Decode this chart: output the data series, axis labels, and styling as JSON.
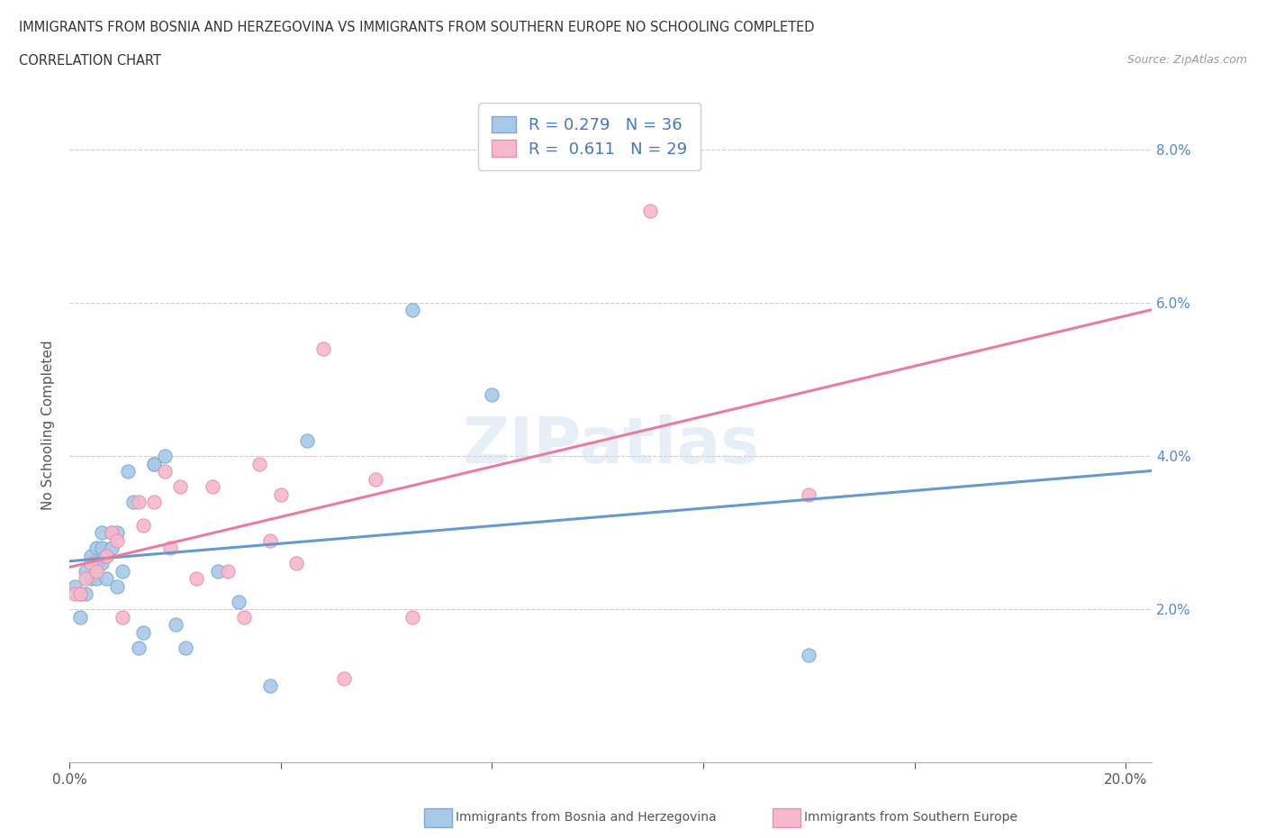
{
  "title_line1": "IMMIGRANTS FROM BOSNIA AND HERZEGOVINA VS IMMIGRANTS FROM SOUTHERN EUROPE NO SCHOOLING COMPLETED",
  "title_line2": "CORRELATION CHART",
  "source_text": "Source: ZipAtlas.com",
  "ylabel": "No Schooling Completed",
  "xlim": [
    0.0,
    0.205
  ],
  "ylim": [
    0.0,
    0.088
  ],
  "xticks": [
    0.0,
    0.04,
    0.08,
    0.12,
    0.16,
    0.2
  ],
  "yticks": [
    0.0,
    0.02,
    0.04,
    0.06,
    0.08
  ],
  "blue_R": 0.279,
  "blue_N": 36,
  "pink_R": 0.611,
  "pink_N": 29,
  "blue_color": "#a8c8e8",
  "pink_color": "#f5b8cc",
  "blue_edge_color": "#7aaad0",
  "pink_edge_color": "#e890aa",
  "blue_line_color": "#6699cc",
  "pink_line_color": "#e87ca0",
  "legend_text_color": "#4477bb",
  "blue_scatter_x": [
    0.001,
    0.002,
    0.002,
    0.003,
    0.003,
    0.004,
    0.004,
    0.005,
    0.005,
    0.005,
    0.006,
    0.006,
    0.006,
    0.007,
    0.007,
    0.008,
    0.008,
    0.009,
    0.009,
    0.01,
    0.011,
    0.012,
    0.013,
    0.014,
    0.016,
    0.016,
    0.018,
    0.02,
    0.022,
    0.028,
    0.032,
    0.038,
    0.045,
    0.065,
    0.08,
    0.14
  ],
  "blue_scatter_y": [
    0.023,
    0.019,
    0.022,
    0.022,
    0.025,
    0.024,
    0.027,
    0.024,
    0.026,
    0.028,
    0.026,
    0.028,
    0.03,
    0.024,
    0.027,
    0.028,
    0.03,
    0.023,
    0.03,
    0.025,
    0.038,
    0.034,
    0.015,
    0.017,
    0.039,
    0.039,
    0.04,
    0.018,
    0.015,
    0.025,
    0.021,
    0.01,
    0.042,
    0.059,
    0.048,
    0.014
  ],
  "pink_scatter_x": [
    0.001,
    0.002,
    0.003,
    0.004,
    0.005,
    0.007,
    0.008,
    0.009,
    0.01,
    0.013,
    0.014,
    0.016,
    0.018,
    0.019,
    0.021,
    0.024,
    0.027,
    0.03,
    0.033,
    0.036,
    0.038,
    0.04,
    0.043,
    0.048,
    0.052,
    0.058,
    0.065,
    0.11,
    0.14
  ],
  "pink_scatter_y": [
    0.022,
    0.022,
    0.024,
    0.026,
    0.025,
    0.027,
    0.03,
    0.029,
    0.019,
    0.034,
    0.031,
    0.034,
    0.038,
    0.028,
    0.036,
    0.024,
    0.036,
    0.025,
    0.019,
    0.039,
    0.029,
    0.035,
    0.026,
    0.054,
    0.011,
    0.037,
    0.019,
    0.072,
    0.035
  ]
}
